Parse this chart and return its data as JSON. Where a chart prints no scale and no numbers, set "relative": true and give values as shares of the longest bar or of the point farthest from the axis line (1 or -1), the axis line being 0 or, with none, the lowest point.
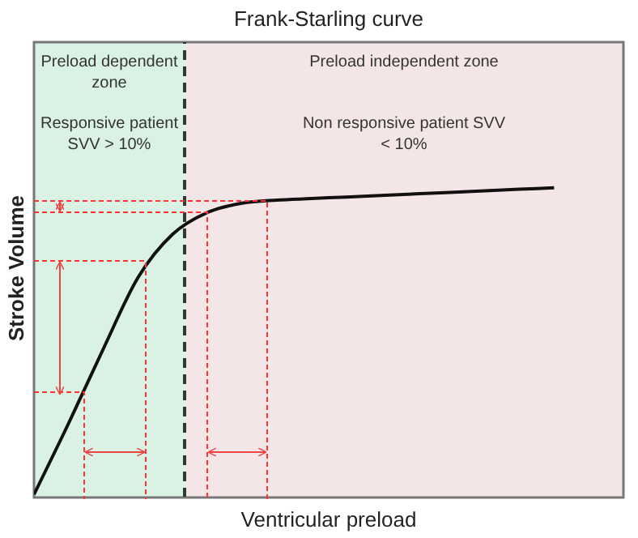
{
  "chart_data": {
    "type": "line",
    "title": "Frank-Starling curve",
    "xlabel": "Ventricular preload",
    "ylabel": "Stroke Volume",
    "relative": true,
    "marker": "none",
    "line_style": "solid",
    "categories": [
      null,
      null,
      null,
      null,
      null,
      null,
      null,
      null,
      null,
      null,
      null,
      null,
      null,
      null,
      null,
      null,
      null,
      null
    ],
    "series": [
      {
        "color": "#111111",
        "values": [
          0.01,
          0.24,
          0.48,
          0.71,
          0.85,
          0.92,
          0.95,
          0.96,
          0.965,
          0.97,
          0.975,
          0.98,
          0.985,
          0.99,
          0.995,
          1,
          null,
          null
        ]
      }
    ],
    "annotations": [
      "Preload dependent zone",
      "Preload independent zone",
      "Responsive patient SVV > 10%",
      "Non responsive patient SVV < 10%"
    ]
  }
}
